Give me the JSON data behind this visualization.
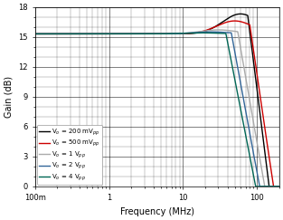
{
  "title": "",
  "xlabel": "Frequency (MHz)",
  "ylabel": "Gain (dB)",
  "background_color": "#ffffff",
  "yticks": [
    0,
    3,
    6,
    9,
    12,
    15,
    18
  ],
  "curves": [
    {
      "label": "V$_o$ = 200 mV$_{pp}$",
      "color": "#000000",
      "lw": 1.0,
      "flat_gain": 15.3,
      "peak_freq": 65,
      "peak_gain": 17.3,
      "bw_3db": 110,
      "order": 1.8
    },
    {
      "label": "V$_o$ = 500 mV$_{pp}$",
      "color": "#cc0000",
      "lw": 1.0,
      "flat_gain": 15.3,
      "peak_freq": 55,
      "peak_gain": 16.6,
      "bw_3db": 130,
      "order": 1.8
    },
    {
      "label": "V$_o$ = 1 V$_{pp}$",
      "color": "#aaaaaa",
      "lw": 1.0,
      "flat_gain": 15.3,
      "peak_freq": 35,
      "peak_gain": 15.7,
      "bw_3db": 95,
      "order": 2.0
    },
    {
      "label": "V$_o$ = 2 V$_{pp}$",
      "color": "#336699",
      "lw": 1.0,
      "flat_gain": 15.3,
      "peak_freq": 28,
      "peak_gain": 15.5,
      "bw_3db": 80,
      "order": 2.2
    },
    {
      "label": "V$_o$ = 4 V$_{pp}$",
      "color": "#006655",
      "lw": 1.0,
      "flat_gain": 15.3,
      "peak_freq": 22,
      "peak_gain": 15.4,
      "bw_3db": 65,
      "order": 2.5
    }
  ],
  "legend_fontsize": 5.0,
  "axis_fontsize": 7,
  "tick_fontsize": 6
}
